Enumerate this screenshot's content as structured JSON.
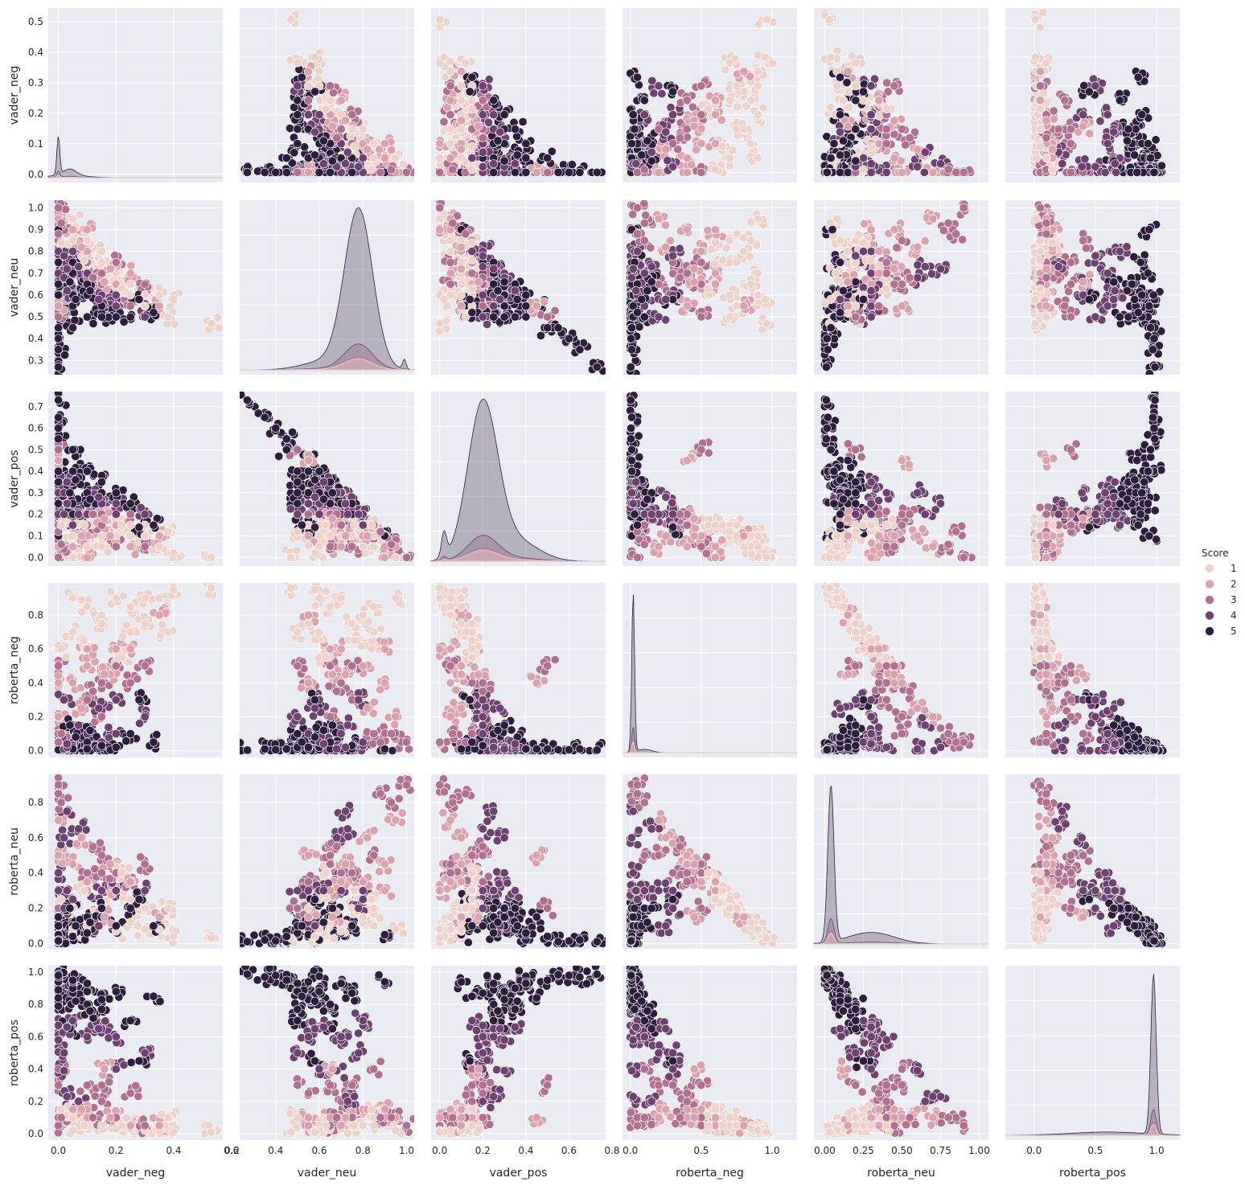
{
  "chart_data": {
    "type": "scatter",
    "subtype": "pairplot",
    "title": "",
    "style": {
      "facecolor": "#eaeaf2",
      "gridcolor": "#ffffff",
      "grid": true
    },
    "variables": [
      "vader_neg",
      "vader_neu",
      "vader_pos",
      "roberta_neg",
      "roberta_neu",
      "roberta_pos"
    ],
    "axes": {
      "vader_neg": {
        "range": [
          -0.035,
          0.57
        ],
        "ticks": [
          0.0,
          0.2,
          0.4,
          0.6
        ],
        "tick_labels": [
          "0.0",
          "0.2",
          "0.4",
          "0.6"
        ],
        "y_ticks": [
          0.0,
          0.1,
          0.2,
          0.3,
          0.4,
          0.5
        ],
        "y_tick_labels": [
          "0.0",
          "0.1",
          "0.2",
          "0.3",
          "0.4",
          "0.5"
        ]
      },
      "vader_neu": {
        "range": [
          0.235,
          1.035
        ],
        "ticks": [
          0.2,
          0.4,
          0.6,
          0.8,
          1.0
        ],
        "tick_labels": [
          "0.2",
          "0.4",
          "0.6",
          "0.8",
          "1.0"
        ],
        "y_ticks": [
          0.3,
          0.4,
          0.5,
          0.6,
          0.7,
          0.8,
          0.9,
          1.0
        ],
        "y_tick_labels": [
          "0.3",
          "0.4",
          "0.5",
          "0.6",
          "0.7",
          "0.8",
          "0.9",
          "1.0"
        ]
      },
      "vader_pos": {
        "range": [
          -0.04,
          0.77
        ],
        "ticks": [
          0.0,
          0.2,
          0.4,
          0.6,
          0.8
        ],
        "tick_labels": [
          "0.0",
          "0.2",
          "0.4",
          "0.6",
          "0.8"
        ],
        "y_ticks": [
          0.0,
          0.1,
          0.2,
          0.3,
          0.4,
          0.5,
          0.6,
          0.7
        ],
        "y_tick_labels": [
          "0.0",
          "0.1",
          "0.2",
          "0.3",
          "0.4",
          "0.5",
          "0.6",
          "0.7"
        ]
      },
      "roberta_neg": {
        "range": [
          -0.055,
          1.175
        ],
        "y_range": [
          -0.04,
          0.99
        ],
        "ticks": [
          0.0,
          0.5,
          1.0
        ],
        "tick_labels": [
          "0.0",
          "0.5",
          "1.0"
        ],
        "y_ticks": [
          0.0,
          0.2,
          0.4,
          0.6,
          0.8
        ],
        "y_tick_labels": [
          "0.0",
          "0.2",
          "0.4",
          "0.6",
          "0.8"
        ]
      },
      "roberta_neu": {
        "range": [
          -0.07,
          1.06
        ],
        "y_range": [
          -0.03,
          0.96
        ],
        "ticks": [
          0.0,
          0.25,
          0.5,
          0.75,
          1.0
        ],
        "tick_labels": [
          "0.00",
          "0.25",
          "0.50",
          "0.75",
          "1.00"
        ],
        "y_ticks": [
          0.0,
          0.2,
          0.4,
          0.6,
          0.8
        ],
        "y_tick_labels": [
          "0.0",
          "0.2",
          "0.4",
          "0.6",
          "0.8"
        ]
      },
      "roberta_pos": {
        "range": [
          -0.235,
          1.19
        ],
        "y_range": [
          -0.04,
          1.04
        ],
        "ticks": [
          0.0,
          0.5,
          1.0
        ],
        "tick_labels": [
          "0.0",
          "0.5",
          "1.0"
        ],
        "y_ticks": [
          0.0,
          0.2,
          0.4,
          0.6,
          0.8,
          1.0
        ],
        "y_tick_labels": [
          "0.0",
          "0.2",
          "0.4",
          "0.6",
          "0.8",
          "1.0"
        ]
      }
    },
    "hue": {
      "variable": "Score",
      "levels": [
        1,
        2,
        3,
        4,
        5
      ],
      "colors": [
        "#edd1cb",
        "#d9a2ac",
        "#b0708f",
        "#6e4270",
        "#2d1e3e"
      ]
    },
    "legend": {
      "title": "Score",
      "placement": "right",
      "labels": [
        "1",
        "2",
        "3",
        "4",
        "5"
      ]
    },
    "diagonal_kde": {
      "vader_neg": {
        "peak_density_axis": 0.53,
        "components": [
          [
            0.0,
            0.005,
            0.44
          ],
          [
            0.04,
            0.022,
            0.07
          ],
          [
            0.03,
            0.06,
            0.03
          ]
        ]
      },
      "vader_neu": {
        "peak_density_axis": 1.0,
        "components": [
          [
            0.78,
            0.065,
            0.97
          ],
          [
            0.62,
            0.1,
            0.05
          ],
          [
            0.99,
            0.008,
            0.06
          ]
        ]
      },
      "vader_pos": {
        "peak_density_axis": 1.0,
        "components": [
          [
            0.2,
            0.07,
            0.95
          ],
          [
            0.36,
            0.1,
            0.12
          ],
          [
            0.02,
            0.012,
            0.15
          ]
        ]
      },
      "roberta_neg": {
        "peak_density_axis": 1.0,
        "components": [
          [
            0.02,
            0.01,
            0.97
          ],
          [
            0.1,
            0.05,
            0.02
          ]
        ]
      },
      "roberta_neu": {
        "peak_density_axis": 1.0,
        "components": [
          [
            0.04,
            0.02,
            0.95
          ],
          [
            0.3,
            0.15,
            0.07
          ]
        ]
      },
      "roberta_pos": {
        "peak_density_axis": 1.0,
        "components": [
          [
            0.975,
            0.022,
            0.97
          ],
          [
            0.6,
            0.3,
            0.02
          ]
        ]
      }
    },
    "points": {
      "rows_are": [
        "vader_neg",
        "vader_neu",
        "vader_pos",
        "roberta_neg",
        "roberta_neu",
        "roberta_pos"
      ],
      "columns": [
        "vader_neg",
        "vader_neu",
        "vader_pos",
        "roberta_neg",
        "roberta_neu",
        "roberta_pos",
        "Score"
      ],
      "data": [
        [
          0.0,
          1.0,
          0.0,
          0.05,
          0.9,
          0.05,
          3
        ],
        [
          0.0,
          0.9,
          0.1,
          0.01,
          0.05,
          0.94,
          5
        ],
        [
          0.0,
          0.75,
          0.25,
          0.01,
          0.1,
          0.89,
          5
        ],
        [
          0.0,
          0.6,
          0.4,
          0.005,
          0.02,
          0.975,
          5
        ],
        [
          0.0,
          0.45,
          0.55,
          0.005,
          0.01,
          0.985,
          5
        ],
        [
          0.0,
          0.27,
          0.73,
          0.003,
          0.01,
          0.987,
          5
        ],
        [
          0.0,
          0.8,
          0.2,
          0.03,
          0.3,
          0.67,
          4
        ],
        [
          0.0,
          0.85,
          0.15,
          0.1,
          0.5,
          0.4,
          3
        ],
        [
          0.0,
          0.7,
          0.3,
          0.02,
          0.4,
          0.58,
          4
        ],
        [
          0.0,
          0.95,
          0.05,
          0.2,
          0.7,
          0.1,
          2
        ],
        [
          0.0,
          0.65,
          0.35,
          0.01,
          0.2,
          0.79,
          5
        ],
        [
          0.0,
          0.55,
          0.45,
          0.01,
          0.15,
          0.84,
          5
        ],
        [
          0.05,
          0.8,
          0.15,
          0.05,
          0.25,
          0.7,
          4
        ],
        [
          0.05,
          0.75,
          0.2,
          0.03,
          0.1,
          0.87,
          5
        ],
        [
          0.05,
          0.7,
          0.25,
          0.01,
          0.06,
          0.93,
          5
        ],
        [
          0.05,
          0.9,
          0.05,
          0.4,
          0.45,
          0.15,
          2
        ],
        [
          0.05,
          0.85,
          0.1,
          0.7,
          0.2,
          0.1,
          1
        ],
        [
          0.05,
          0.6,
          0.35,
          0.02,
          0.08,
          0.9,
          5
        ],
        [
          0.05,
          0.55,
          0.4,
          0.01,
          0.05,
          0.94,
          5
        ],
        [
          0.05,
          0.95,
          0.0,
          0.9,
          0.08,
          0.02,
          1
        ],
        [
          0.1,
          0.7,
          0.2,
          0.1,
          0.3,
          0.6,
          4
        ],
        [
          0.1,
          0.8,
          0.1,
          0.5,
          0.35,
          0.15,
          2
        ],
        [
          0.1,
          0.75,
          0.15,
          0.3,
          0.4,
          0.3,
          3
        ],
        [
          0.1,
          0.6,
          0.3,
          0.02,
          0.1,
          0.88,
          5
        ],
        [
          0.1,
          0.65,
          0.25,
          0.05,
          0.15,
          0.8,
          5
        ],
        [
          0.1,
          0.85,
          0.05,
          0.85,
          0.1,
          0.05,
          1
        ],
        [
          0.1,
          0.5,
          0.4,
          0.01,
          0.06,
          0.93,
          5
        ],
        [
          0.1,
          0.9,
          0.0,
          0.6,
          0.3,
          0.1,
          2
        ],
        [
          0.15,
          0.7,
          0.15,
          0.4,
          0.4,
          0.2,
          3
        ],
        [
          0.15,
          0.65,
          0.2,
          0.2,
          0.5,
          0.3,
          3
        ],
        [
          0.15,
          0.6,
          0.25,
          0.05,
          0.3,
          0.65,
          4
        ],
        [
          0.15,
          0.75,
          0.1,
          0.75,
          0.2,
          0.05,
          1
        ],
        [
          0.15,
          0.8,
          0.05,
          0.8,
          0.15,
          0.05,
          1
        ],
        [
          0.15,
          0.55,
          0.3,
          0.02,
          0.15,
          0.83,
          5
        ],
        [
          0.15,
          0.5,
          0.35,
          0.03,
          0.2,
          0.77,
          5
        ],
        [
          0.2,
          0.6,
          0.2,
          0.3,
          0.3,
          0.4,
          4
        ],
        [
          0.2,
          0.65,
          0.15,
          0.6,
          0.3,
          0.1,
          2
        ],
        [
          0.2,
          0.7,
          0.1,
          0.9,
          0.07,
          0.03,
          1
        ],
        [
          0.2,
          0.55,
          0.25,
          0.1,
          0.3,
          0.6,
          4
        ],
        [
          0.2,
          0.75,
          0.05,
          0.5,
          0.4,
          0.1,
          3
        ],
        [
          0.2,
          0.5,
          0.3,
          0.02,
          0.1,
          0.88,
          5
        ],
        [
          0.25,
          0.6,
          0.15,
          0.7,
          0.25,
          0.05,
          1
        ],
        [
          0.25,
          0.65,
          0.1,
          0.85,
          0.12,
          0.03,
          1
        ],
        [
          0.25,
          0.55,
          0.2,
          0.4,
          0.35,
          0.25,
          3
        ],
        [
          0.25,
          0.5,
          0.25,
          0.1,
          0.2,
          0.7,
          5
        ],
        [
          0.25,
          0.7,
          0.05,
          0.6,
          0.35,
          0.05,
          2
        ],
        [
          0.3,
          0.6,
          0.1,
          0.9,
          0.08,
          0.02,
          1
        ],
        [
          0.3,
          0.55,
          0.15,
          0.75,
          0.2,
          0.05,
          1
        ],
        [
          0.3,
          0.65,
          0.05,
          0.5,
          0.45,
          0.05,
          3
        ],
        [
          0.3,
          0.5,
          0.2,
          0.2,
          0.3,
          0.5,
          4
        ],
        [
          0.35,
          0.6,
          0.05,
          0.9,
          0.08,
          0.02,
          1
        ],
        [
          0.35,
          0.55,
          0.1,
          0.8,
          0.15,
          0.05,
          2
        ],
        [
          0.4,
          0.58,
          0.02,
          0.95,
          0.04,
          0.01,
          1
        ],
        [
          0.38,
          0.5,
          0.12,
          0.7,
          0.2,
          0.1,
          1
        ],
        [
          0.53,
          0.47,
          0.0,
          0.96,
          0.03,
          0.01,
          1
        ],
        [
          0.0,
          0.5,
          0.5,
          0.5,
          0.2,
          0.3,
          3
        ],
        [
          0.0,
          0.55,
          0.45,
          0.4,
          0.5,
          0.1,
          2
        ],
        [
          0.05,
          0.45,
          0.5,
          0.01,
          0.04,
          0.95,
          5
        ],
        [
          0.0,
          0.35,
          0.65,
          0.01,
          0.02,
          0.97,
          5
        ],
        [
          0.0,
          0.4,
          0.6,
          0.005,
          0.015,
          0.98,
          5
        ],
        [
          0.02,
          0.68,
          0.3,
          0.01,
          0.6,
          0.39,
          4
        ],
        [
          0.03,
          0.72,
          0.25,
          0.02,
          0.75,
          0.23,
          4
        ],
        [
          0.0,
          0.88,
          0.12,
          0.05,
          0.85,
          0.1,
          3
        ],
        [
          0.01,
          0.93,
          0.06,
          0.1,
          0.8,
          0.1,
          3
        ],
        [
          0.07,
          0.73,
          0.2,
          0.15,
          0.65,
          0.2,
          4
        ],
        [
          0.12,
          0.68,
          0.2,
          0.35,
          0.55,
          0.1,
          3
        ],
        [
          0.08,
          0.82,
          0.1,
          0.25,
          0.6,
          0.15,
          2
        ],
        [
          0.18,
          0.72,
          0.1,
          0.45,
          0.45,
          0.1,
          2
        ],
        [
          0.22,
          0.63,
          0.15,
          0.55,
          0.4,
          0.05,
          1
        ],
        [
          0.28,
          0.58,
          0.14,
          0.3,
          0.25,
          0.45,
          5
        ],
        [
          0.33,
          0.52,
          0.15,
          0.05,
          0.1,
          0.85,
          5
        ],
        [
          0.02,
          0.78,
          0.2,
          0.3,
          0.2,
          0.5,
          4
        ],
        [
          0.04,
          0.66,
          0.3,
          0.15,
          0.2,
          0.65,
          5
        ],
        [
          0.06,
          0.58,
          0.36,
          0.08,
          0.1,
          0.82,
          5
        ],
        [
          0.01,
          0.84,
          0.15,
          0.6,
          0.25,
          0.15,
          1
        ],
        [
          0.09,
          0.76,
          0.15,
          0.65,
          0.3,
          0.05,
          1
        ],
        [
          0.14,
          0.58,
          0.28,
          0.25,
          0.1,
          0.65,
          4
        ],
        [
          0.16,
          0.66,
          0.18,
          0.45,
          0.15,
          0.4,
          2
        ],
        [
          0.11,
          0.62,
          0.27,
          0.12,
          0.12,
          0.76,
          5
        ],
        [
          0.03,
          0.62,
          0.35,
          0.04,
          0.3,
          0.66,
          4
        ]
      ]
    }
  },
  "y_labels": [
    "vader_neg",
    "vader_neu",
    "vader_pos",
    "roberta_neg",
    "roberta_neu",
    "roberta_pos"
  ],
  "x_labels": [
    "vader_neg",
    "vader_neu",
    "vader_pos",
    "roberta_neg",
    "roberta_neu",
    "roberta_pos"
  ],
  "legend": {
    "title": "Score",
    "labels": [
      "1",
      "2",
      "3",
      "4",
      "5"
    ]
  }
}
